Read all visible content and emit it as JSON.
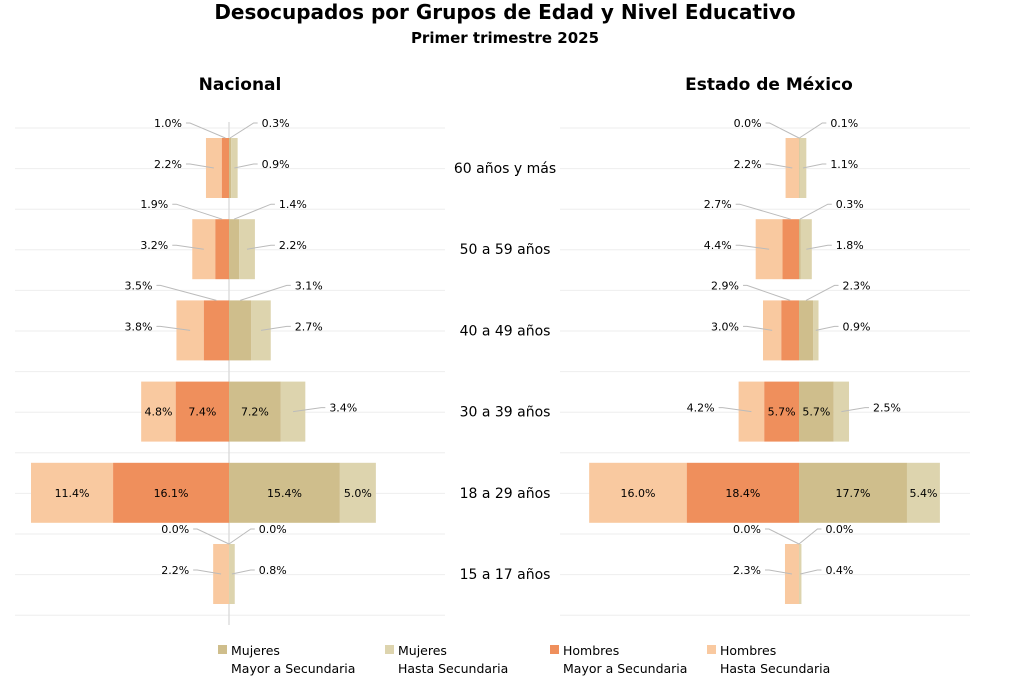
{
  "chart_data": {
    "type": "bar",
    "title": "Desocupados por Grupos de Edad y Nivel Educativo",
    "subtitle": "Primer trimestre 2025",
    "categories": [
      "60 años y más",
      "50 a 59 años",
      "40 a 49 años",
      "30 a 39 años",
      "18 a 29 años",
      "15 a 17 años"
    ],
    "legend": [
      {
        "key": "mm",
        "line1": "Mujeres",
        "line2": "Mayor a Secundaria",
        "color": "#CFBE8C"
      },
      {
        "key": "mh",
        "line1": "Mujeres",
        "line2": "Hasta Secundaria",
        "color": "#DDD4AE"
      },
      {
        "key": "hm",
        "line1": "Hombres",
        "line2": "Mayor a Secundaria",
        "color": "#EF8F5C"
      },
      {
        "key": "hh",
        "line1": "Hombres",
        "line2": "Hasta Secundaria",
        "color": "#F9C9A0"
      }
    ],
    "legend_position": "bottom",
    "unit": "%",
    "panels": [
      {
        "title": "Nacional",
        "hh": [
          2.2,
          3.2,
          3.8,
          4.8,
          11.4,
          2.2
        ],
        "hm": [
          1.0,
          1.9,
          3.5,
          7.4,
          16.1,
          0.0
        ],
        "mm": [
          0.3,
          1.4,
          3.1,
          7.2,
          15.4,
          0.0
        ],
        "mh": [
          0.9,
          2.2,
          2.7,
          3.4,
          5.0,
          0.8
        ]
      },
      {
        "title": "Estado de México",
        "hh": [
          2.2,
          4.4,
          3.0,
          4.2,
          16.0,
          2.3
        ],
        "hm": [
          0.0,
          2.7,
          2.9,
          5.7,
          18.4,
          0.0
        ],
        "mm": [
          0.1,
          0.3,
          2.3,
          5.7,
          17.7,
          0.0
        ],
        "mh": [
          1.1,
          1.8,
          0.9,
          2.5,
          5.4,
          0.4
        ]
      }
    ]
  }
}
